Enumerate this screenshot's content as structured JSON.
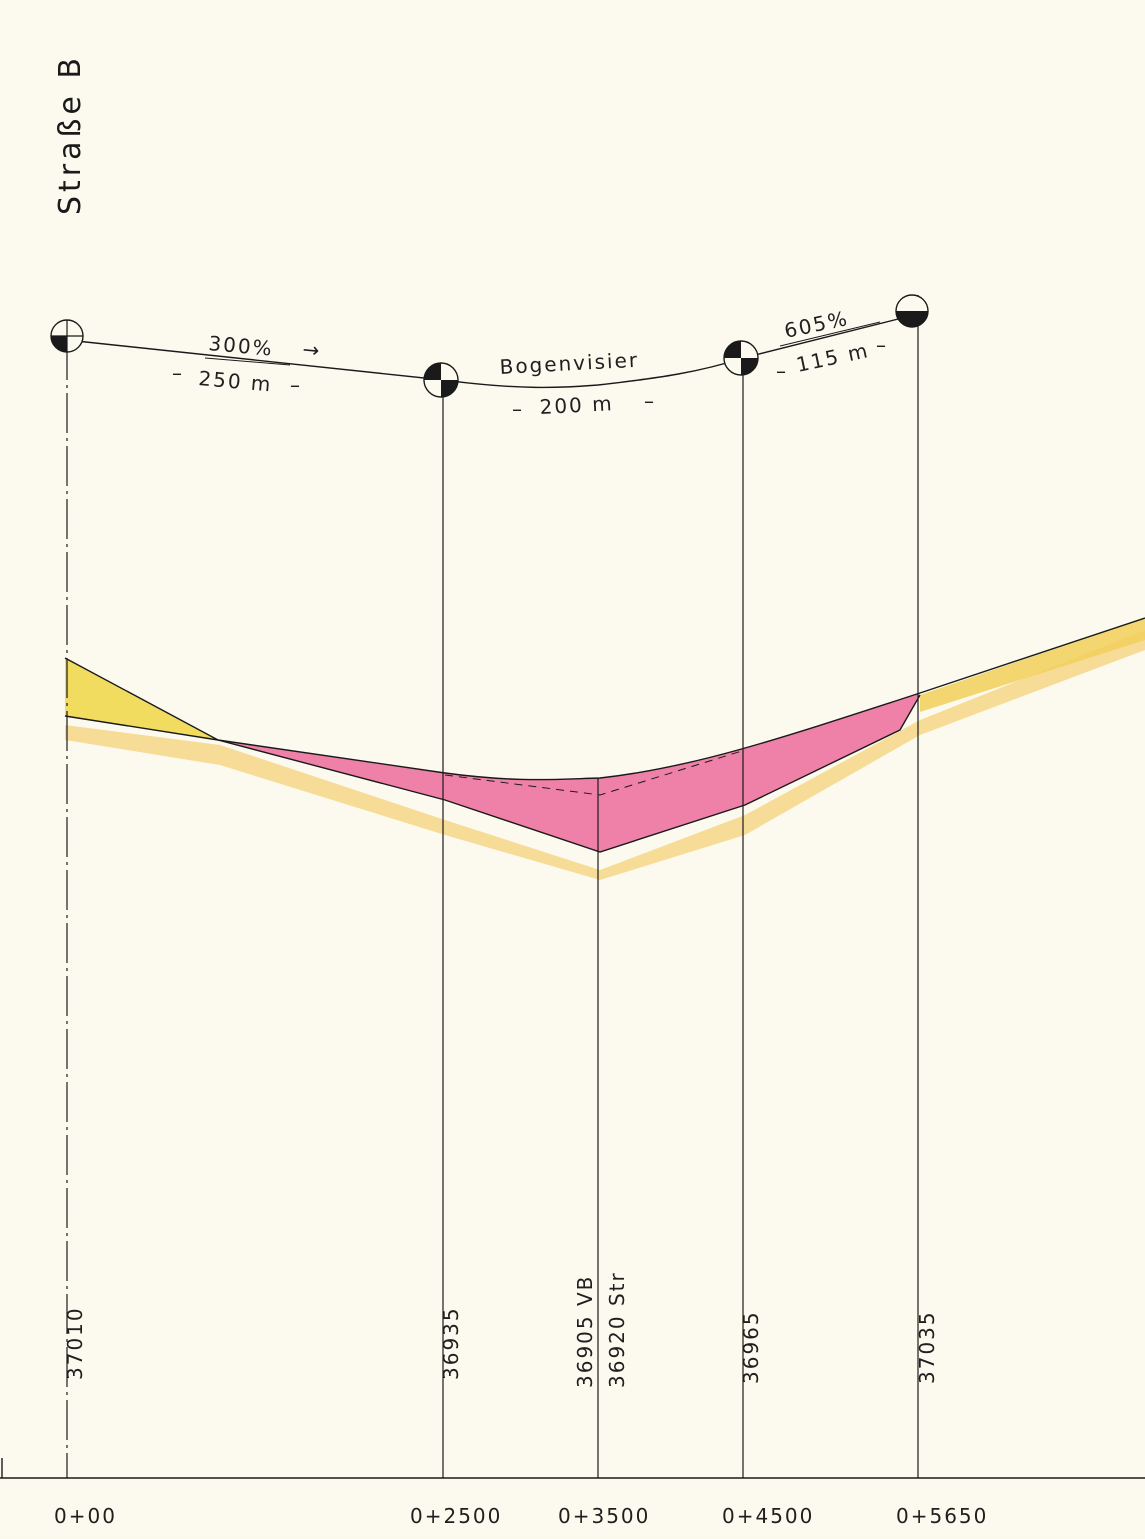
{
  "title": "Straße B",
  "grades": {
    "segment1": {
      "grade": "300%",
      "length": "250 m"
    },
    "vertical_curve": {
      "label": "Bogenvisier",
      "length": "200 m"
    },
    "segment2": {
      "grade": "605%",
      "length": "115 m"
    }
  },
  "elevations": {
    "p1": "37010",
    "p2": "36935",
    "p3_vb": "36905 VB",
    "p3_str": "36920 Str",
    "p4": "36965",
    "p5": "37035"
  },
  "stations": {
    "s1": "0+00",
    "s2": "0+2500",
    "s3": "0+3500",
    "s4": "0+4500",
    "s5": "0+5650"
  },
  "colors": {
    "paper": "#fcfaee",
    "fill_cut": "#f0d850",
    "fill_embankment": "#ec6a9a",
    "ground_band": "#f6d27a",
    "ink": "#1a1a1a"
  }
}
